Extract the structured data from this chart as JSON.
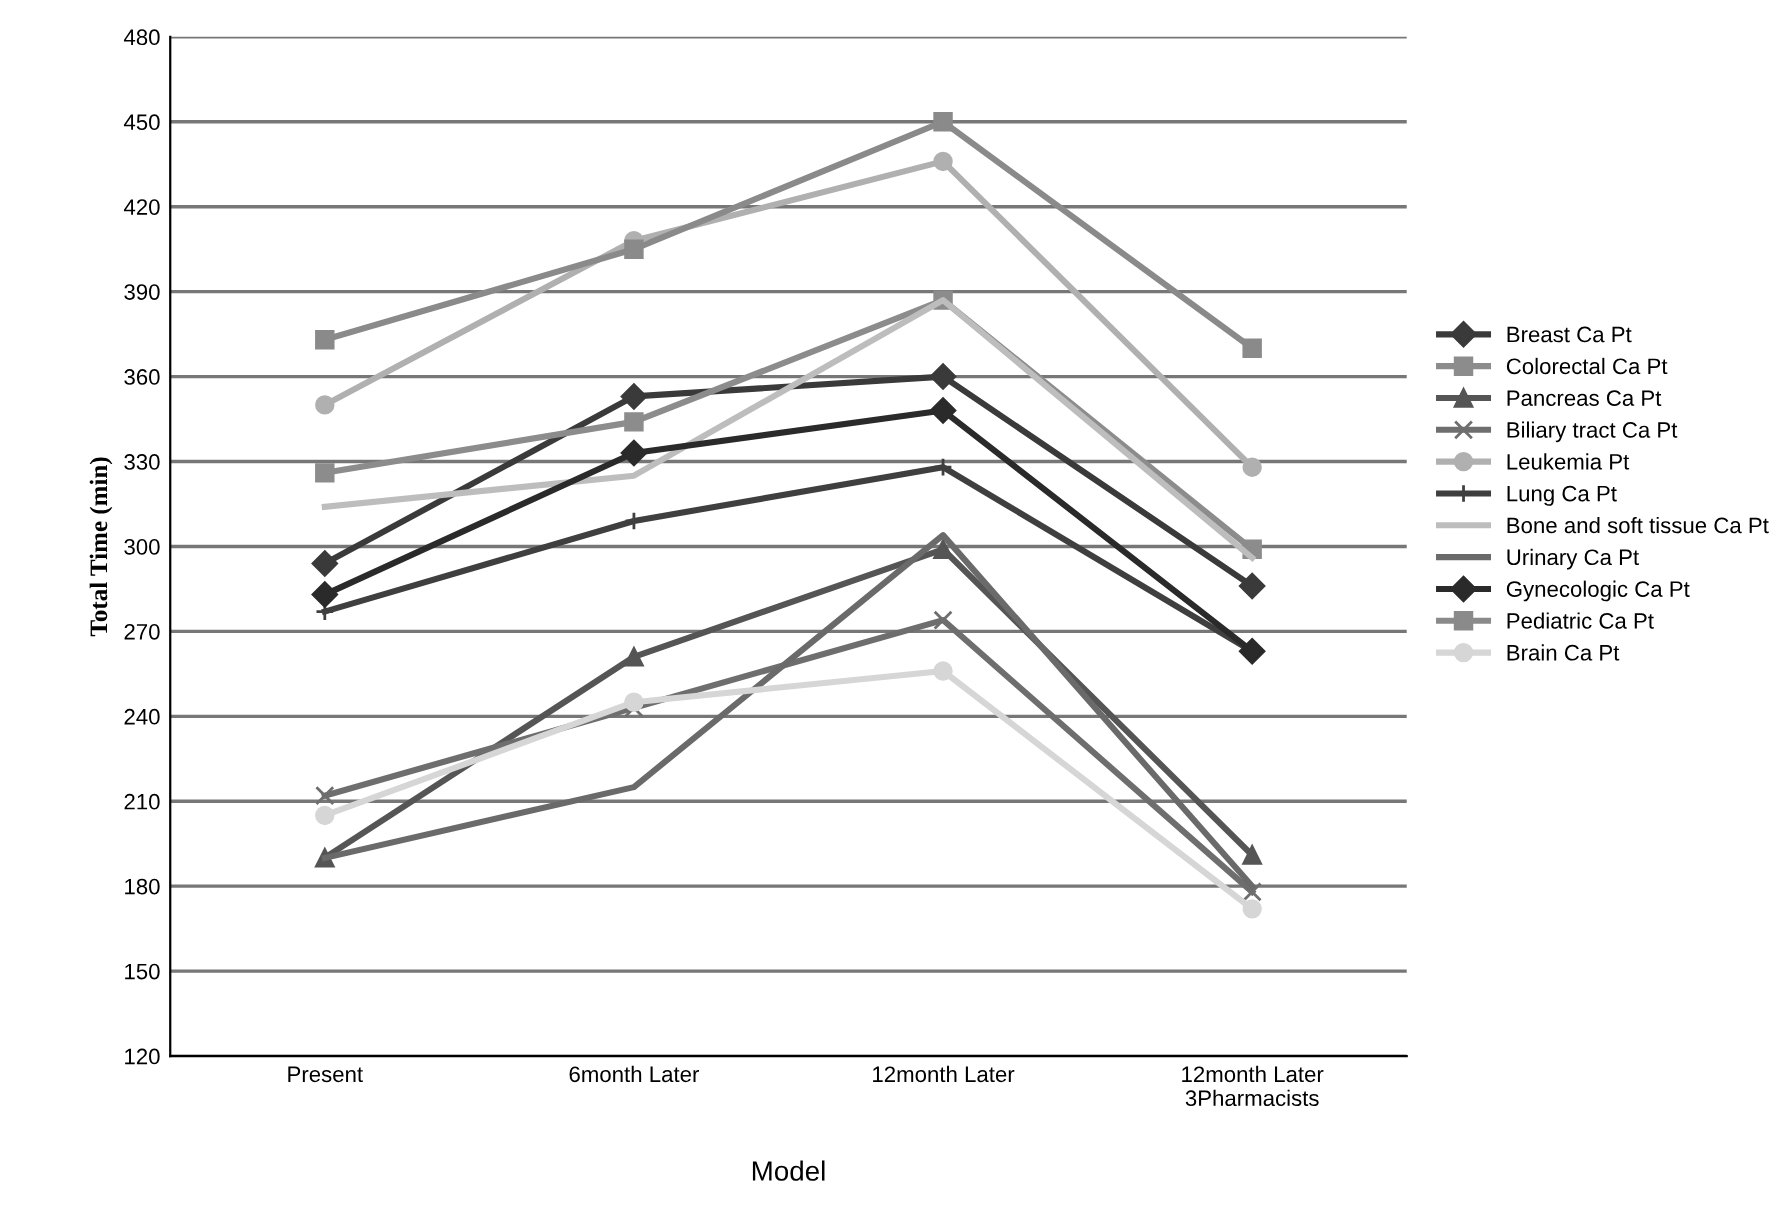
{
  "chart_data": {
    "type": "line",
    "xlabel": "Model",
    "ylabel": "Total Time (min)",
    "categories": [
      "Present",
      "6month Later",
      "12month Later",
      "12month Later\n3Pharmacists"
    ],
    "ylim": [
      120,
      480
    ],
    "yticks": [
      120,
      150,
      180,
      210,
      240,
      270,
      300,
      330,
      360,
      390,
      420,
      450,
      480
    ],
    "grid": "y",
    "legend": "right",
    "series": [
      {
        "name": "Breast Ca Pt",
        "color": "#3a3a3a",
        "marker": "diamond",
        "values": [
          294,
          353,
          360,
          286
        ]
      },
      {
        "name": "Colorectal Ca Pt",
        "color": "#8c8c8c",
        "marker": "square",
        "values": [
          326,
          344,
          387,
          299
        ]
      },
      {
        "name": "Pancreas Ca Pt",
        "color": "#555555",
        "marker": "triangle",
        "values": [
          190,
          261,
          299,
          191
        ]
      },
      {
        "name": "Biliary tract Ca Pt",
        "color": "#6e6e6e",
        "marker": "cross",
        "values": [
          212,
          243,
          274,
          178
        ]
      },
      {
        "name": "Leukemia Pt",
        "color": "#b0b0b0",
        "marker": "circle",
        "values": [
          350,
          408,
          436,
          328
        ]
      },
      {
        "name": "Lung Ca Pt",
        "color": "#3f3f3f",
        "marker": "plus",
        "values": [
          277,
          309,
          328,
          263
        ]
      },
      {
        "name": "Bone and soft tissue Ca Pt",
        "color": "#bdbdbd",
        "marker": "none",
        "values": [
          314,
          325,
          387,
          296
        ]
      },
      {
        "name": "Urinary Ca Pt",
        "color": "#6a6a6a",
        "marker": "none",
        "values": [
          190,
          215,
          304,
          180
        ]
      },
      {
        "name": "Gynecologic Ca Pt",
        "color": "#2a2a2a",
        "marker": "diamond",
        "values": [
          283,
          333,
          348,
          263
        ]
      },
      {
        "name": "Pediatric Ca Pt",
        "color": "#8a8a8a",
        "marker": "square",
        "values": [
          373,
          405,
          450,
          370
        ]
      },
      {
        "name": "Brain Ca Pt",
        "color": "#d6d6d6",
        "marker": "circle",
        "values": [
          205,
          245,
          256,
          172
        ]
      }
    ]
  }
}
